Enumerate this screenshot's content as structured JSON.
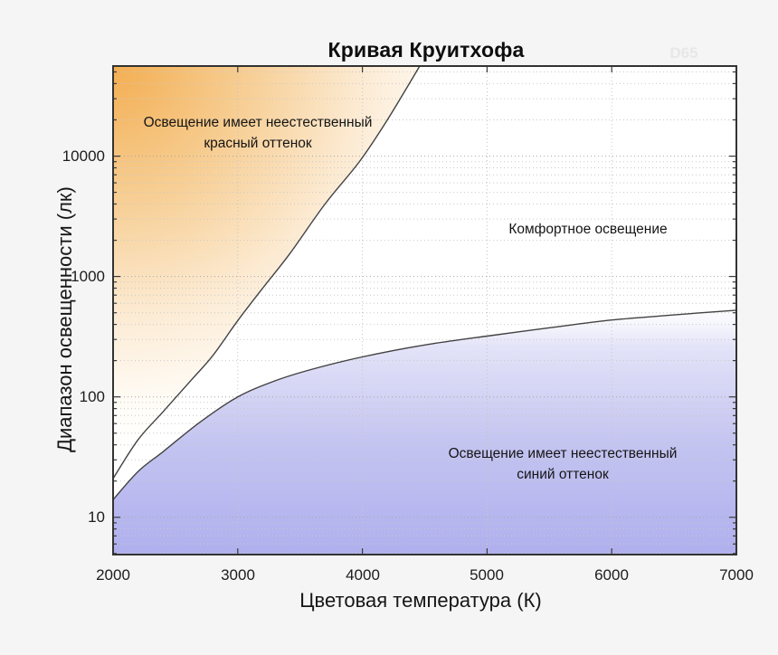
{
  "title": "Кривая Круитхофа",
  "watermark": "D65",
  "axes": {
    "x_label": "Цветовая температура (К)",
    "y_label": "Диапазон освещенности (лк)"
  },
  "annotations": {
    "red_line1": "Освещение имеет неестественный",
    "red_line2": "красный оттенок",
    "comfort": "Комфортное освещение",
    "blue_line1": "Освещение имеет неестественный",
    "blue_line2": "синий оттенок"
  },
  "chart_data": {
    "type": "area",
    "title": "Кривая Круитхофа",
    "xlabel": "Цветовая температура (К)",
    "ylabel": "Диапазон освещенности (лк)",
    "xlim": [
      2000,
      7000
    ],
    "ylim": [
      4.9,
      56000
    ],
    "y_scale": "log",
    "grid": "dotted minor log grid horizontal, dotted vertical at each 1000 K",
    "x_ticks": [
      2000,
      3000,
      4000,
      5000,
      6000,
      7000
    ],
    "y_ticks": [
      10,
      100,
      1000,
      10000
    ],
    "series": [
      {
        "name": "red-boundary (upper limit of unnatural red region)",
        "points": [
          [
            2000,
            21
          ],
          [
            2200,
            44
          ],
          [
            2400,
            75
          ],
          [
            2630,
            139
          ],
          [
            2800,
            220
          ],
          [
            3000,
            430
          ],
          [
            3200,
            800
          ],
          [
            3420,
            1560
          ],
          [
            3700,
            4000
          ],
          [
            3980,
            9100
          ],
          [
            4200,
            20000
          ],
          [
            4460,
            56000
          ]
        ]
      },
      {
        "name": "blue-boundary (lower limit of comfort region)",
        "points": [
          [
            2000,
            14
          ],
          [
            2200,
            24
          ],
          [
            2400,
            35
          ],
          [
            2700,
            62
          ],
          [
            3000,
            100
          ],
          [
            3300,
            136
          ],
          [
            3600,
            170
          ],
          [
            4000,
            215
          ],
          [
            4500,
            270
          ],
          [
            5000,
            320
          ],
          [
            5500,
            375
          ],
          [
            6000,
            435
          ],
          [
            6500,
            480
          ],
          [
            7000,
            525
          ]
        ]
      }
    ],
    "regions": [
      {
        "name": "red-region",
        "label": "Освещение имеет неестественный красный оттенок",
        "position": "above red-boundary, top-left"
      },
      {
        "name": "comfort-region",
        "label": "Комфортное освещение",
        "position": "between curves"
      },
      {
        "name": "blue-region",
        "label": "Освещение имеет неестественный синий оттенок",
        "position": "below blue-boundary"
      }
    ]
  },
  "colors": {
    "background": "#f5f5f6",
    "plot_background": "#ffffff",
    "border": "#333333",
    "curve": "#424242",
    "grid_minor": "#c9c9c9",
    "grid_major": "#a6a6a6",
    "grid_vertical": "#c5c5c5",
    "orange_deep": "#f3ae52",
    "orange_mid": "#f7cf96",
    "orange_pale": "#fcecd6",
    "blue_deep": "#aeaeee",
    "blue_mid": "#c4c4f1",
    "blue_pale": "#e3e3f8"
  }
}
